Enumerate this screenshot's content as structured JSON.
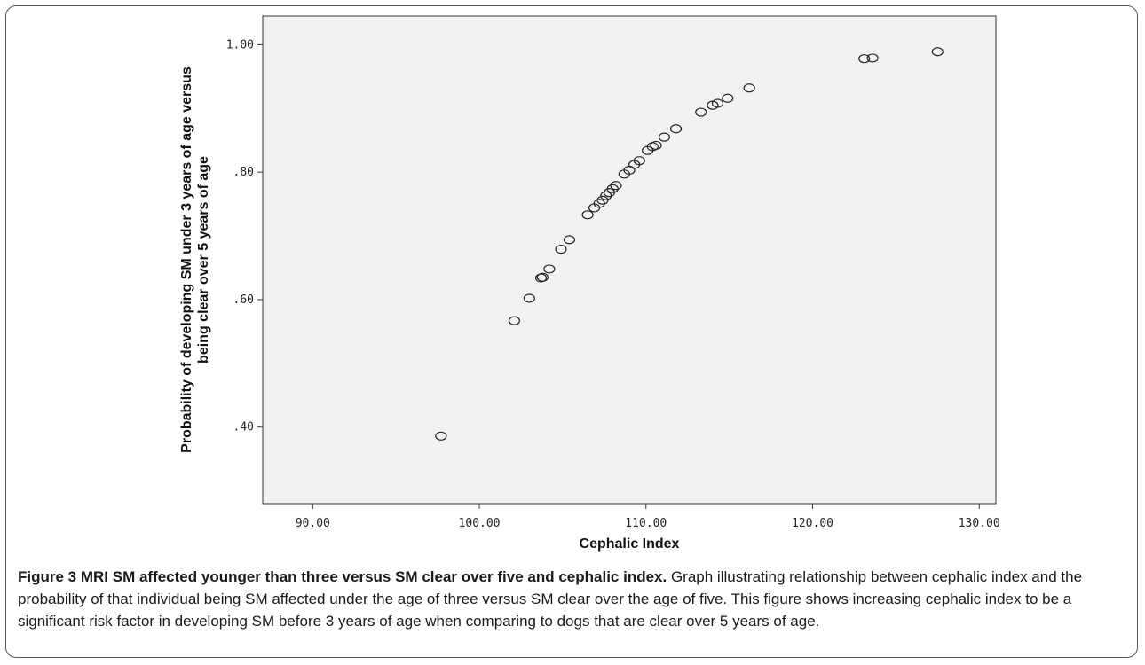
{
  "caption": {
    "title": "Figure 3 MRI SM affected younger than three versus SM clear over five and cephalic index.",
    "body": "Graph illustrating relationship between cephalic index and the probability of that individual being SM affected under the age of three versus SM clear over the age of five. This figure shows increasing cephalic index to be a significant risk factor in developing SM before 3 years of age when comparing to dogs that are clear over 5 years of age."
  },
  "chart_data": {
    "type": "scatter",
    "title": "",
    "xlabel": "Cephalic Index",
    "ylabel_lines": [
      "Probability of developing SM under 3 years of age versus",
      "being clear over 5 years of age"
    ],
    "xlim": [
      87.0,
      131.0
    ],
    "ylim": [
      0.28,
      1.045
    ],
    "xticks": [
      90,
      100,
      110,
      120,
      130
    ],
    "xtick_labels": [
      "90.00",
      "100.00",
      "110.00",
      "120.00",
      "130.00"
    ],
    "yticks": [
      0.4,
      0.6,
      0.8,
      1.0
    ],
    "ytick_labels": [
      ".40",
      ".60",
      ".80",
      "1.00"
    ],
    "grid": false,
    "plot_background": "#f2f2f2",
    "marker_color": "#222222",
    "points": [
      {
        "x": 97.7,
        "y": 0.386
      },
      {
        "x": 102.1,
        "y": 0.567
      },
      {
        "x": 103.0,
        "y": 0.602
      },
      {
        "x": 103.7,
        "y": 0.634
      },
      {
        "x": 103.8,
        "y": 0.635
      },
      {
        "x": 104.2,
        "y": 0.648
      },
      {
        "x": 104.9,
        "y": 0.679
      },
      {
        "x": 105.4,
        "y": 0.694
      },
      {
        "x": 106.5,
        "y": 0.733
      },
      {
        "x": 106.9,
        "y": 0.744
      },
      {
        "x": 107.2,
        "y": 0.751
      },
      {
        "x": 107.4,
        "y": 0.756
      },
      {
        "x": 107.6,
        "y": 0.763
      },
      {
        "x": 107.8,
        "y": 0.768
      },
      {
        "x": 108.0,
        "y": 0.774
      },
      {
        "x": 108.2,
        "y": 0.779
      },
      {
        "x": 108.7,
        "y": 0.797
      },
      {
        "x": 109.0,
        "y": 0.803
      },
      {
        "x": 109.3,
        "y": 0.812
      },
      {
        "x": 109.6,
        "y": 0.818
      },
      {
        "x": 110.1,
        "y": 0.834
      },
      {
        "x": 110.4,
        "y": 0.84
      },
      {
        "x": 110.6,
        "y": 0.842
      },
      {
        "x": 111.1,
        "y": 0.855
      },
      {
        "x": 111.8,
        "y": 0.868
      },
      {
        "x": 113.3,
        "y": 0.894
      },
      {
        "x": 114.0,
        "y": 0.905
      },
      {
        "x": 114.3,
        "y": 0.908
      },
      {
        "x": 114.9,
        "y": 0.916
      },
      {
        "x": 116.2,
        "y": 0.932
      },
      {
        "x": 123.1,
        "y": 0.978
      },
      {
        "x": 123.6,
        "y": 0.979
      },
      {
        "x": 127.5,
        "y": 0.989
      }
    ]
  }
}
